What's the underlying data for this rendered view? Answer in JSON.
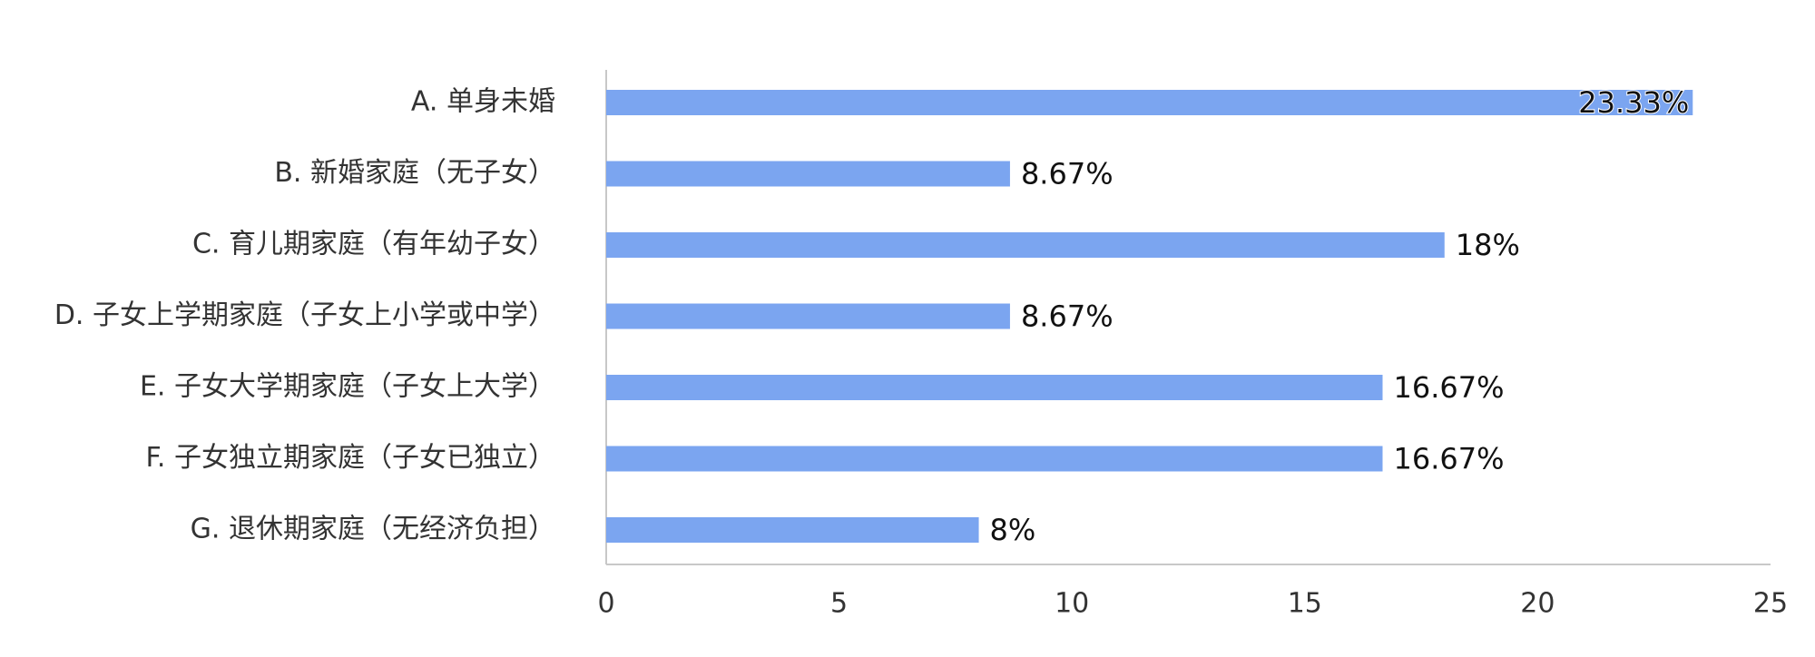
{
  "chart_data": {
    "type": "bar",
    "orientation": "horizontal",
    "categories": [
      "A. 单身未婚",
      "B. 新婚家庭（无子女）",
      "C. 育儿期家庭（有年幼子女）",
      "D. 子女上学期家庭（子女上小学或中学）",
      "E. 子女大学期家庭（子女上大学）",
      "F. 子女独立期家庭（子女已独立）",
      "G. 退休期家庭（无经济负担）"
    ],
    "values": [
      23.33,
      8.67,
      18,
      8.67,
      16.67,
      16.67,
      8
    ],
    "value_labels": [
      "23.33%",
      "8.67%",
      "18%",
      "8.67%",
      "16.67%",
      "16.67%",
      "8%"
    ],
    "color": "#7ba5f0",
    "xlim": [
      0,
      25
    ],
    "xticks": [
      0,
      5,
      10,
      15,
      20,
      25
    ],
    "grid": false
  }
}
